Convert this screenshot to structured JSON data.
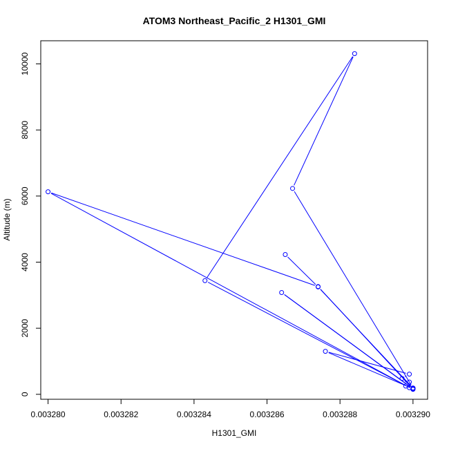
{
  "chart_data": {
    "type": "line",
    "title": "ATOM3 Northeast_Pacific_2 H1301_GMI",
    "xlabel": "H1301_GMI",
    "ylabel": "Altitude (m)",
    "xlim": [
      0.0032798,
      0.0032904
    ],
    "ylim": [
      -150,
      10700
    ],
    "xticks": [
      0.00328,
      0.003282,
      0.003284,
      0.003286,
      0.003288,
      0.00329
    ],
    "xtick_labels": [
      "0.003280",
      "0.003282",
      "0.003284",
      "0.003286",
      "0.003288",
      "0.003290"
    ],
    "yticks": [
      0,
      2000,
      4000,
      6000,
      8000,
      10000
    ],
    "ytick_labels": [
      "0",
      "2000",
      "4000",
      "6000",
      "8000",
      "10000"
    ],
    "grid": false,
    "legend": "none",
    "line_style": "lines-and-open-circles",
    "color": "#0000ff",
    "series": [
      {
        "x": [
          0.00329,
          0.0032899,
          0.0032898,
          0.0032899,
          0.00329,
          0.0032897,
          0.0032899,
          0.0032876,
          0.00329,
          0.0032864,
          0.00329,
          0.0032874,
          0.00328,
          0.00329,
          0.0032843,
          0.0032884,
          0.0032867,
          0.00329,
          0.0032874,
          0.0032865
        ],
        "y": [
          180,
          200,
          250,
          370,
          190,
          480,
          610,
          1300,
          170,
          3080,
          160,
          3260,
          6130,
          150,
          3440,
          10310,
          6230,
          190,
          3250,
          4230
        ]
      }
    ]
  }
}
